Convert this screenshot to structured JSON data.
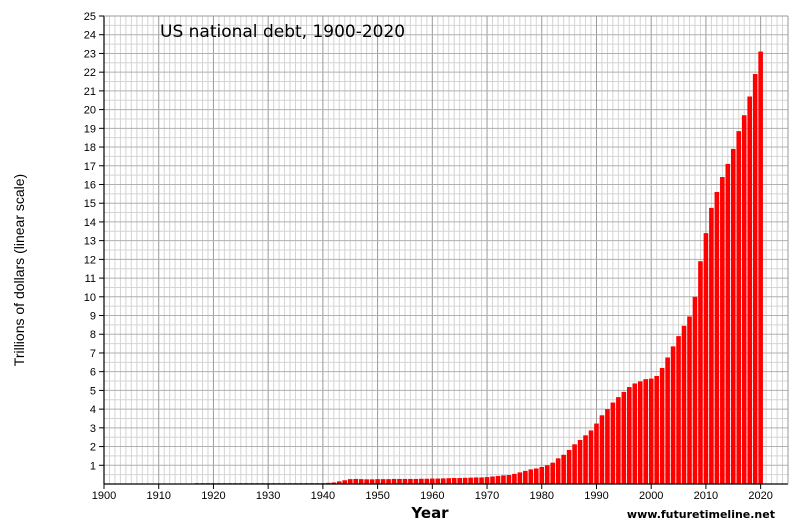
{
  "chart_data": {
    "type": "bar",
    "title": "US national debt, 1900-2020",
    "xlabel": "Year",
    "ylabel": "Trillions of dollars (linear scale)",
    "source": "www.futuretimeline.net",
    "xlim": [
      1900,
      2025
    ],
    "ylim": [
      0,
      25
    ],
    "x_ticks": [
      "1900",
      "1910",
      "1920",
      "1930",
      "1940",
      "1950",
      "1960",
      "1970",
      "1980",
      "1990",
      "2000",
      "2010",
      "2020"
    ],
    "y_ticks": [
      "1",
      "2",
      "3",
      "4",
      "5",
      "6",
      "7",
      "8",
      "9",
      "10",
      "11",
      "12",
      "13",
      "14",
      "15",
      "16",
      "17",
      "18",
      "19",
      "20",
      "21",
      "22",
      "23",
      "24",
      "25"
    ],
    "grid": true,
    "bar_color": "#ff0000",
    "x": [
      1917,
      1918,
      1919,
      1920,
      1921,
      1922,
      1923,
      1924,
      1925,
      1926,
      1927,
      1928,
      1929,
      1930,
      1931,
      1932,
      1933,
      1934,
      1935,
      1936,
      1937,
      1938,
      1939,
      1940,
      1941,
      1942,
      1943,
      1944,
      1945,
      1946,
      1947,
      1948,
      1949,
      1950,
      1951,
      1952,
      1953,
      1954,
      1955,
      1956,
      1957,
      1958,
      1959,
      1960,
      1961,
      1962,
      1963,
      1964,
      1965,
      1966,
      1967,
      1968,
      1969,
      1970,
      1971,
      1972,
      1973,
      1974,
      1975,
      1976,
      1977,
      1978,
      1979,
      1980,
      1981,
      1982,
      1983,
      1984,
      1985,
      1986,
      1987,
      1988,
      1989,
      1990,
      1991,
      1992,
      1993,
      1994,
      1995,
      1996,
      1997,
      1998,
      1999,
      2000,
      2001,
      2002,
      2003,
      2004,
      2005,
      2006,
      2007,
      2008,
      2009,
      2010,
      2011,
      2012,
      2013,
      2014,
      2015,
      2016,
      2017,
      2018,
      2019,
      2020
    ],
    "values": [
      0.01,
      0.02,
      0.03,
      0.03,
      0.02,
      0.02,
      0.02,
      0.02,
      0.02,
      0.02,
      0.02,
      0.02,
      0.02,
      0.02,
      0.02,
      0.02,
      0.02,
      0.03,
      0.03,
      0.03,
      0.04,
      0.04,
      0.04,
      0.04,
      0.06,
      0.08,
      0.14,
      0.2,
      0.26,
      0.27,
      0.26,
      0.25,
      0.25,
      0.26,
      0.26,
      0.26,
      0.27,
      0.27,
      0.27,
      0.27,
      0.27,
      0.28,
      0.28,
      0.29,
      0.29,
      0.3,
      0.31,
      0.32,
      0.32,
      0.33,
      0.34,
      0.35,
      0.35,
      0.37,
      0.4,
      0.43,
      0.46,
      0.48,
      0.54,
      0.62,
      0.7,
      0.78,
      0.83,
      0.91,
      1.0,
      1.14,
      1.37,
      1.56,
      1.82,
      2.12,
      2.35,
      2.6,
      2.86,
      3.23,
      3.67,
      4.0,
      4.35,
      4.64,
      4.92,
      5.18,
      5.37,
      5.48,
      5.6,
      5.63,
      5.77,
      6.2,
      6.76,
      7.35,
      7.9,
      8.45,
      8.95,
      10.0,
      11.9,
      13.4,
      14.75,
      15.6,
      16.4,
      17.1,
      17.9,
      18.85,
      19.7,
      20.7,
      21.9,
      23.1
    ]
  }
}
